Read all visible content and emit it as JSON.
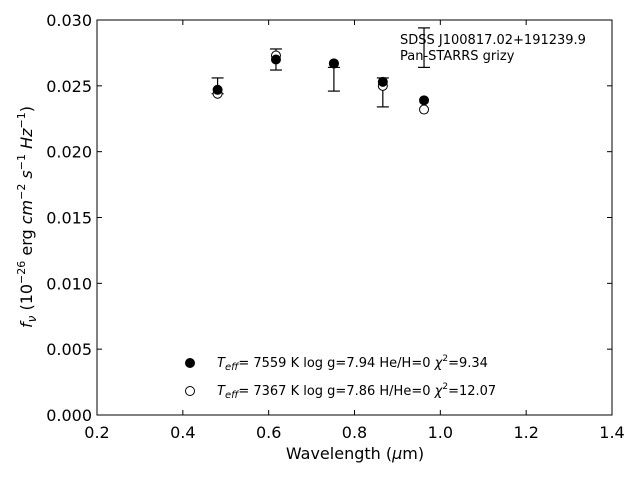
{
  "chart_data": {
    "type": "scatter",
    "title": "",
    "xlabel": "Wavelength (μm)",
    "ylabel": "f_ν (10^-26 erg cm^-2 s^-1 Hz^-1)",
    "xlim": [
      0.2,
      1.4
    ],
    "ylim": [
      0.0,
      0.03
    ],
    "xticks": [
      "0.2",
      "0.4",
      "0.6",
      "0.8",
      "1.0",
      "1.2",
      "1.4"
    ],
    "xtick_values": [
      0.2,
      0.4,
      0.6,
      0.8,
      1.0,
      1.2,
      1.4
    ],
    "yticks": [
      "0.000",
      "0.005",
      "0.010",
      "0.015",
      "0.020",
      "0.025",
      "0.030"
    ],
    "ytick_values": [
      0.0,
      0.005,
      0.01,
      0.015,
      0.02,
      0.025,
      0.03
    ],
    "grid": false,
    "annotation": [
      "SDSS J100817.02+191239.9",
      "Pan-STARRS grizy"
    ],
    "observed": {
      "x": [
        0.481,
        0.617,
        0.752,
        0.866,
        0.962
      ],
      "y": [
        0.025,
        0.027,
        0.0255,
        0.0245,
        0.0279
      ],
      "yerr": [
        0.0006,
        0.0008,
        0.0009,
        0.0011,
        0.0015
      ]
    },
    "series": [
      {
        "x": [
          0.481,
          0.617,
          0.752,
          0.866,
          0.962
        ],
        "y": [
          0.0247,
          0.027,
          0.0267,
          0.0253,
          0.0239
        ],
        "marker": "filled-circle",
        "color": "#000000",
        "label_parts": [
          "T",
          "eff",
          "= 7559 K log g=7.94 He/H=0 ",
          "χ",
          "2",
          "=9.34"
        ]
      },
      {
        "x": [
          0.481,
          0.617,
          0.752,
          0.866,
          0.962
        ],
        "y": [
          0.0244,
          0.0273,
          0.0267,
          0.025,
          0.0232
        ],
        "marker": "open-circle",
        "color": "#000000",
        "label_parts": [
          "T",
          "eff",
          "= 7367 K log g=7.86 H/He=0 ",
          "χ",
          "2",
          "=12.07"
        ]
      }
    ],
    "axis_text": {
      "x_main": "Wavelength (",
      "x_mu": "μ",
      "x_tail": "m)",
      "y_f": "f",
      "y_nu": "ν",
      "y_open": " (10",
      "y_exp1": "−26",
      "y_erg": " erg ",
      "y_cm": "cm",
      "y_exp2": "−2",
      "y_s": " s",
      "y_exp3": "−1",
      "y_hz": " Hz",
      "y_exp4": "−1",
      "y_close": ")"
    }
  }
}
